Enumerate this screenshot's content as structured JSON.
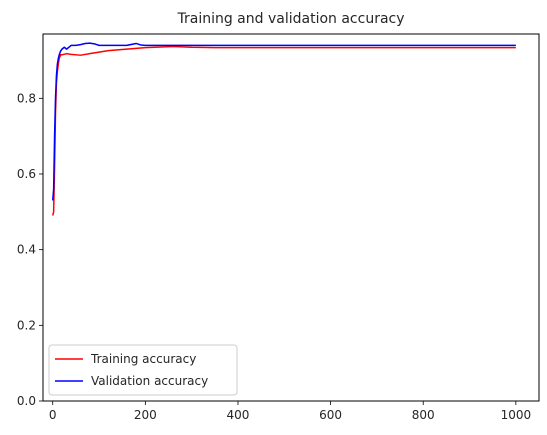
{
  "chart_data": {
    "type": "line",
    "title": "Training and validation accuracy",
    "xlabel": "",
    "ylabel": "",
    "xlim": [
      -21,
      1050
    ],
    "ylim": [
      0,
      0.97
    ],
    "xticks": [
      0,
      200,
      400,
      600,
      800,
      1000
    ],
    "yticks": [
      0.0,
      0.2,
      0.4,
      0.6,
      0.8
    ],
    "grid": false,
    "legend_position": "lower-left",
    "series": [
      {
        "name": "Training accuracy",
        "color": "#ff0000",
        "x": [
          0,
          2,
          4,
          6,
          8,
          10,
          12,
          14,
          17,
          20,
          30,
          40,
          50,
          60,
          70,
          80,
          90,
          100,
          120,
          140,
          160,
          180,
          200,
          220,
          240,
          260,
          280,
          300,
          350,
          400,
          500,
          600,
          700,
          800,
          900,
          1000
        ],
        "y": [
          0.49,
          0.5,
          0.62,
          0.76,
          0.84,
          0.87,
          0.89,
          0.905,
          0.915,
          0.915,
          0.918,
          0.916,
          0.915,
          0.914,
          0.916,
          0.918,
          0.92,
          0.922,
          0.926,
          0.928,
          0.93,
          0.932,
          0.934,
          0.935,
          0.936,
          0.937,
          0.936,
          0.935,
          0.934,
          0.934,
          0.934,
          0.934,
          0.934,
          0.934,
          0.934,
          0.934
        ]
      },
      {
        "name": "Validation accuracy",
        "color": "#0000ff",
        "x": [
          0,
          2,
          4,
          6,
          8,
          10,
          12,
          14,
          17,
          20,
          25,
          30,
          40,
          50,
          60,
          70,
          80,
          90,
          100,
          120,
          140,
          160,
          180,
          190,
          200,
          250,
          300,
          400,
          500,
          600,
          700,
          800,
          900,
          1000
        ],
        "y": [
          0.53,
          0.56,
          0.7,
          0.8,
          0.86,
          0.89,
          0.905,
          0.915,
          0.925,
          0.93,
          0.935,
          0.93,
          0.94,
          0.94,
          0.942,
          0.945,
          0.946,
          0.944,
          0.94,
          0.94,
          0.94,
          0.94,
          0.945,
          0.941,
          0.94,
          0.94,
          0.94,
          0.94,
          0.94,
          0.94,
          0.94,
          0.94,
          0.94,
          0.94
        ]
      }
    ]
  }
}
